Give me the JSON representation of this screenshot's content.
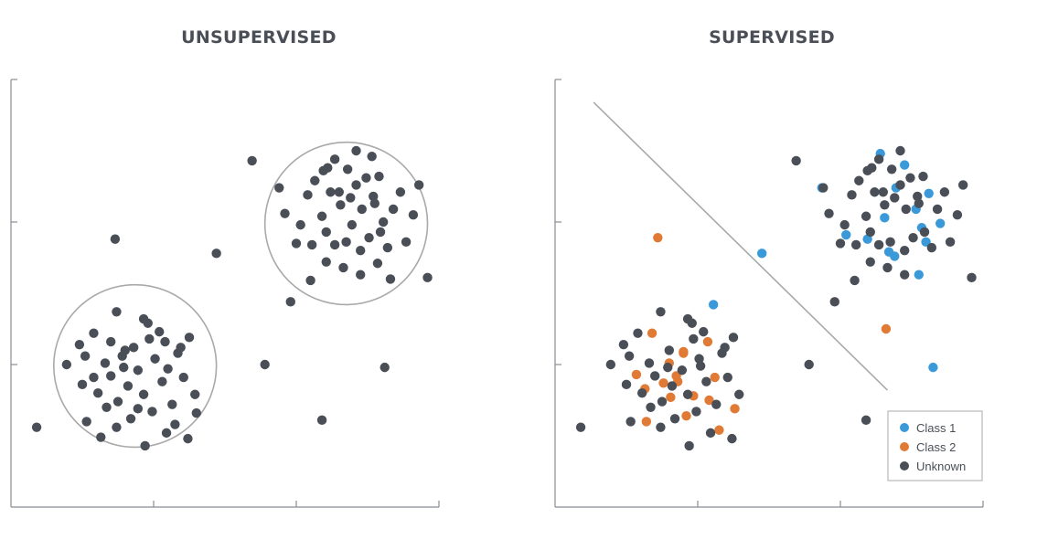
{
  "titles": {
    "left": "UNSUPERVISED",
    "right": "SUPERVISED"
  },
  "colors": {
    "unknown": "#4a4f57",
    "class1": "#3a9ad9",
    "class2": "#e07a35",
    "axis": "#888c92",
    "outline": "#a9a9a9"
  },
  "chart_data": [
    {
      "type": "scatter",
      "title": "UNSUPERVISED",
      "xlim": [
        0,
        3
      ],
      "ylim": [
        0,
        3
      ],
      "grid": false,
      "clusters": [
        {
          "cx": 0.87,
          "cy": 0.99,
          "r": 0.57
        },
        {
          "cx": 2.35,
          "cy": 1.99,
          "r": 0.57
        }
      ],
      "series": [
        {
          "class": "unknown",
          "points": [
            [
              0.18,
              0.56
            ],
            [
              0.73,
              1.88
            ],
            [
              1.44,
              1.78
            ],
            [
              1.69,
              2.43
            ],
            [
              1.96,
              1.44
            ],
            [
              1.78,
              1.0
            ],
            [
              2.62,
              0.98
            ],
            [
              2.18,
              0.61
            ],
            [
              2.92,
              1.61
            ],
            [
              0.39,
              1.0
            ],
            [
              0.48,
              1.14
            ],
            [
              0.52,
              1.06
            ],
            [
              0.58,
              0.91
            ],
            [
              0.61,
              0.8
            ],
            [
              0.66,
              1.01
            ],
            [
              0.7,
              0.92
            ],
            [
              0.75,
              0.74
            ],
            [
              0.78,
              1.06
            ],
            [
              0.82,
              0.85
            ],
            [
              0.86,
              1.12
            ],
            [
              0.89,
              0.96
            ],
            [
              0.93,
              0.79
            ],
            [
              0.97,
              1.18
            ],
            [
              1.01,
              1.04
            ],
            [
              1.06,
              0.88
            ],
            [
              1.1,
              0.97
            ],
            [
              1.13,
              0.72
            ],
            [
              1.17,
              1.08
            ],
            [
              1.21,
              0.91
            ],
            [
              1.25,
              1.19
            ],
            [
              1.29,
              0.79
            ],
            [
              0.53,
              0.6
            ],
            [
              0.63,
              0.49
            ],
            [
              0.74,
              0.56
            ],
            [
              0.84,
              0.62
            ],
            [
              0.94,
              0.43
            ],
            [
              1.09,
              0.52
            ],
            [
              1.24,
              0.48
            ],
            [
              1.3,
              0.66
            ],
            [
              0.58,
              1.22
            ],
            [
              0.7,
              1.16
            ],
            [
              0.8,
              1.1
            ],
            [
              0.96,
              1.29
            ],
            [
              1.08,
              1.16
            ],
            [
              1.19,
              1.12
            ],
            [
              0.74,
              1.37
            ],
            [
              0.93,
              1.32
            ],
            [
              1.04,
              1.23
            ],
            [
              0.67,
              0.7
            ],
            [
              0.99,
              0.67
            ],
            [
              1.15,
              0.58
            ],
            [
              0.5,
              0.86
            ],
            [
              0.89,
              0.69
            ],
            [
              0.79,
              0.98
            ],
            [
              1.88,
              2.24
            ],
            [
              1.92,
              2.06
            ],
            [
              2.0,
              1.85
            ],
            [
              2.03,
              1.98
            ],
            [
              2.08,
              2.19
            ],
            [
              2.13,
              2.29
            ],
            [
              2.18,
              2.04
            ],
            [
              2.21,
              1.93
            ],
            [
              2.24,
              2.21
            ],
            [
              2.27,
              1.84
            ],
            [
              2.31,
              2.12
            ],
            [
              2.36,
              2.37
            ],
            [
              2.39,
              1.98
            ],
            [
              2.42,
              2.26
            ],
            [
              2.46,
              2.09
            ],
            [
              2.51,
              1.89
            ],
            [
              2.54,
              2.18
            ],
            [
              2.58,
              2.32
            ],
            [
              2.61,
              2.0
            ],
            [
              2.64,
              1.82
            ],
            [
              2.68,
              2.09
            ],
            [
              2.73,
              2.21
            ],
            [
              2.77,
              1.86
            ],
            [
              2.82,
              2.05
            ],
            [
              2.86,
              2.26
            ],
            [
              2.1,
              1.59
            ],
            [
              2.21,
              1.72
            ],
            [
              2.33,
              1.68
            ],
            [
              2.45,
              1.63
            ],
            [
              2.57,
              1.71
            ],
            [
              2.66,
              1.6
            ],
            [
              2.27,
              2.44
            ],
            [
              2.42,
              2.5
            ],
            [
              2.53,
              2.46
            ],
            [
              2.11,
              1.84
            ],
            [
              2.45,
              1.8
            ],
            [
              2.59,
              1.93
            ],
            [
              2.19,
              2.36
            ],
            [
              2.3,
              2.21
            ],
            [
              2.49,
              2.31
            ],
            [
              2.35,
              1.86
            ],
            [
              2.55,
              2.13
            ],
            [
              2.38,
              2.17
            ],
            [
              2.22,
              2.38
            ]
          ]
        }
      ]
    },
    {
      "type": "scatter",
      "title": "SUPERVISED",
      "xlim": [
        0,
        3
      ],
      "ylim": [
        0,
        3
      ],
      "grid": false,
      "decision_boundary": {
        "x": [
          0.27,
          2.33
        ],
        "y": [
          2.84,
          0.82
        ]
      },
      "legend": {
        "position": "bottom-right",
        "entries": [
          "Class 1",
          "Class 2",
          "Unknown"
        ]
      },
      "series": [
        {
          "name": "Class 1",
          "class": "class1",
          "points": [
            [
              1.45,
              1.78
            ],
            [
              1.11,
              1.42
            ],
            [
              1.87,
              2.24
            ],
            [
              2.04,
              1.91
            ],
            [
              2.28,
              2.48
            ],
            [
              2.39,
              2.24
            ],
            [
              2.53,
              2.09
            ],
            [
              2.62,
              2.2
            ],
            [
              2.7,
              1.99
            ],
            [
              2.55,
              1.63
            ],
            [
              2.38,
              1.76
            ],
            [
              2.19,
              1.88
            ],
            [
              2.31,
              2.03
            ],
            [
              2.45,
              2.4
            ],
            [
              2.6,
              1.86
            ],
            [
              2.34,
              1.79
            ],
            [
              2.57,
              1.96
            ],
            [
              2.65,
              0.98
            ]
          ]
        },
        {
          "name": "Class 2",
          "class": "class2",
          "points": [
            [
              0.72,
              1.89
            ],
            [
              2.32,
              1.25
            ],
            [
              0.64,
              0.6
            ],
            [
              0.57,
              0.93
            ],
            [
              0.63,
              0.83
            ],
            [
              0.68,
              1.22
            ],
            [
              0.76,
              0.87
            ],
            [
              0.8,
              1.01
            ],
            [
              0.85,
              0.92
            ],
            [
              0.9,
              1.08
            ],
            [
              0.97,
              0.78
            ],
            [
              1.07,
              1.16
            ],
            [
              1.12,
              0.91
            ],
            [
              0.92,
              0.64
            ],
            [
              1.08,
              0.75
            ],
            [
              1.15,
              0.54
            ],
            [
              1.26,
              0.69
            ],
            [
              0.86,
              0.88
            ],
            [
              0.81,
              0.77
            ],
            [
              0.9,
              1.09
            ]
          ]
        },
        {
          "name": "Unknown",
          "class": "unknown",
          "points": [
            [
              0.18,
              0.56
            ],
            [
              1.69,
              2.43
            ],
            [
              1.96,
              1.44
            ],
            [
              1.78,
              1.0
            ],
            [
              2.18,
              0.61
            ],
            [
              2.92,
              1.61
            ],
            [
              0.39,
              1.0
            ],
            [
              0.48,
              1.14
            ],
            [
              0.52,
              1.06
            ],
            [
              0.61,
              0.8
            ],
            [
              0.66,
              1.01
            ],
            [
              0.7,
              0.92
            ],
            [
              0.75,
              0.74
            ],
            [
              0.82,
              0.85
            ],
            [
              0.89,
              0.96
            ],
            [
              0.93,
              0.79
            ],
            [
              0.97,
              1.18
            ],
            [
              1.01,
              1.04
            ],
            [
              1.06,
              0.88
            ],
            [
              1.13,
              0.72
            ],
            [
              1.17,
              1.08
            ],
            [
              1.21,
              0.91
            ],
            [
              1.25,
              1.19
            ],
            [
              1.29,
              0.79
            ],
            [
              0.53,
              0.6
            ],
            [
              0.74,
              0.56
            ],
            [
              0.84,
              0.62
            ],
            [
              0.94,
              0.43
            ],
            [
              1.09,
              0.52
            ],
            [
              1.24,
              0.48
            ],
            [
              0.58,
              1.22
            ],
            [
              0.8,
              1.1
            ],
            [
              0.96,
              1.29
            ],
            [
              1.19,
              1.12
            ],
            [
              0.74,
              1.37
            ],
            [
              0.93,
              1.32
            ],
            [
              1.04,
              1.23
            ],
            [
              0.67,
              0.7
            ],
            [
              0.99,
              0.67
            ],
            [
              0.5,
              0.86
            ],
            [
              0.79,
              0.98
            ],
            [
              1.02,
              0.99
            ],
            [
              1.88,
              2.24
            ],
            [
              1.92,
              2.06
            ],
            [
              2.0,
              1.85
            ],
            [
              2.03,
              1.98
            ],
            [
              2.08,
              2.19
            ],
            [
              2.13,
              2.29
            ],
            [
              2.18,
              2.04
            ],
            [
              2.21,
              1.93
            ],
            [
              2.24,
              2.21
            ],
            [
              2.27,
              1.84
            ],
            [
              2.31,
              2.12
            ],
            [
              2.36,
              2.37
            ],
            [
              2.42,
              2.26
            ],
            [
              2.46,
              2.09
            ],
            [
              2.51,
              1.89
            ],
            [
              2.54,
              2.18
            ],
            [
              2.58,
              2.32
            ],
            [
              2.64,
              1.82
            ],
            [
              2.68,
              2.09
            ],
            [
              2.73,
              2.21
            ],
            [
              2.77,
              1.86
            ],
            [
              2.82,
              2.05
            ],
            [
              2.86,
              2.26
            ],
            [
              2.1,
              1.59
            ],
            [
              2.21,
              1.72
            ],
            [
              2.33,
              1.68
            ],
            [
              2.45,
              1.63
            ],
            [
              2.27,
              2.44
            ],
            [
              2.42,
              2.5
            ],
            [
              2.11,
              1.84
            ],
            [
              2.45,
              1.8
            ],
            [
              2.59,
              1.93
            ],
            [
              2.19,
              2.36
            ],
            [
              2.3,
              2.21
            ],
            [
              2.49,
              2.31
            ],
            [
              2.35,
              1.86
            ],
            [
              2.55,
              2.13
            ],
            [
              2.38,
              2.17
            ],
            [
              2.22,
              2.38
            ]
          ]
        }
      ]
    }
  ]
}
